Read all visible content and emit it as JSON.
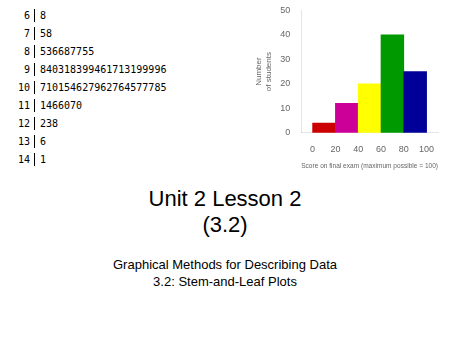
{
  "chart_data": [
    {
      "type": "stem_and_leaf",
      "title": "Unit 2 Lesson 2\n(3.2)",
      "subtitle": [
        "Graphical Methods for Describing Data",
        "3.2: Stem-and-Leaf Plots"
      ],
      "stems": [
        "6",
        "7",
        "8",
        "9",
        "10",
        "11",
        "12",
        "13",
        "14"
      ],
      "leaves": [
        "8",
        "58",
        "536687755",
        "840318399461713199996",
        "710154627962764577785",
        "1466070",
        "238",
        "6",
        "1"
      ]
    },
    {
      "type": "histogram",
      "bins": [
        0,
        20,
        40,
        60,
        80,
        100
      ],
      "values": [
        4,
        12,
        20,
        40,
        25
      ],
      "colors": [
        "#cc0000",
        "#cc0099",
        "#ffff00",
        "#009900",
        "#000099"
      ],
      "xlabel": "Score on final exam (maximum possible = 100)",
      "ylabel": "Number\nof students",
      "xlim": [
        0,
        100
      ],
      "xticks": [
        0,
        20,
        40,
        60,
        80,
        100
      ],
      "ylim": [
        0,
        50
      ],
      "yticks": [
        0,
        10,
        20,
        30,
        40,
        50
      ],
      "grid": false
    }
  ]
}
